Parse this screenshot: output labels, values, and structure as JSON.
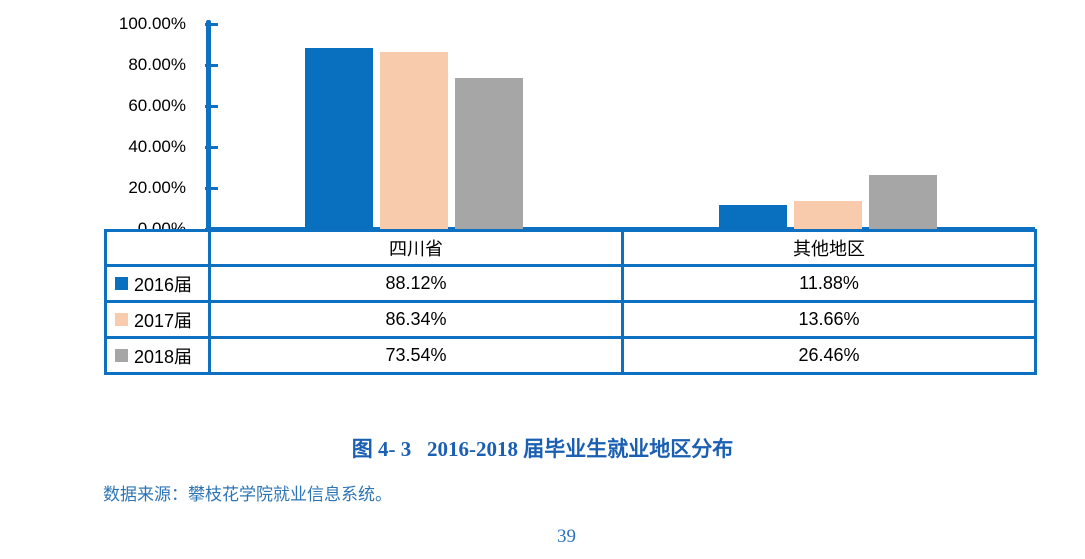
{
  "caption": {
    "text": "图 4- 3   2016-2018 届毕业生就业地区分布",
    "color": "#1a5fb2"
  },
  "source": {
    "text": "数据来源：攀枝花学院就业信息系统。",
    "color": "#2e75b6"
  },
  "page": {
    "number": "39",
    "color": "#2a72bd"
  },
  "chart_data": {
    "type": "bar",
    "title": "图 4- 3 2016-2018 届毕业生就业地区分布",
    "categories": [
      "四川省",
      "其他地区"
    ],
    "series": [
      {
        "name": "2016届",
        "color": "#0970c0",
        "values": [
          88.12,
          11.88
        ],
        "display": [
          "88.12%",
          "11.88%"
        ]
      },
      {
        "name": "2017届",
        "color": "#f8cbad",
        "values": [
          86.34,
          13.66
        ],
        "display": [
          "86.34%",
          "13.66%"
        ]
      },
      {
        "name": "2018届",
        "color": "#a6a6a6",
        "values": [
          73.54,
          26.46
        ],
        "display": [
          "73.54%",
          "26.46%"
        ]
      }
    ],
    "xlabel": "",
    "ylabel": "",
    "ylim": [
      0,
      100
    ],
    "yticks": [
      {
        "value": 100,
        "label": "100.00%"
      },
      {
        "value": 80,
        "label": "80.00%"
      },
      {
        "value": 60,
        "label": "60.00%"
      },
      {
        "value": 40,
        "label": "40.00%"
      },
      {
        "value": 20,
        "label": "20.00%"
      },
      {
        "value": 0,
        "label": "0.00%"
      }
    ],
    "grid": false,
    "legend_position": "data-table-left-column",
    "axis_color": "#0d70c0"
  }
}
